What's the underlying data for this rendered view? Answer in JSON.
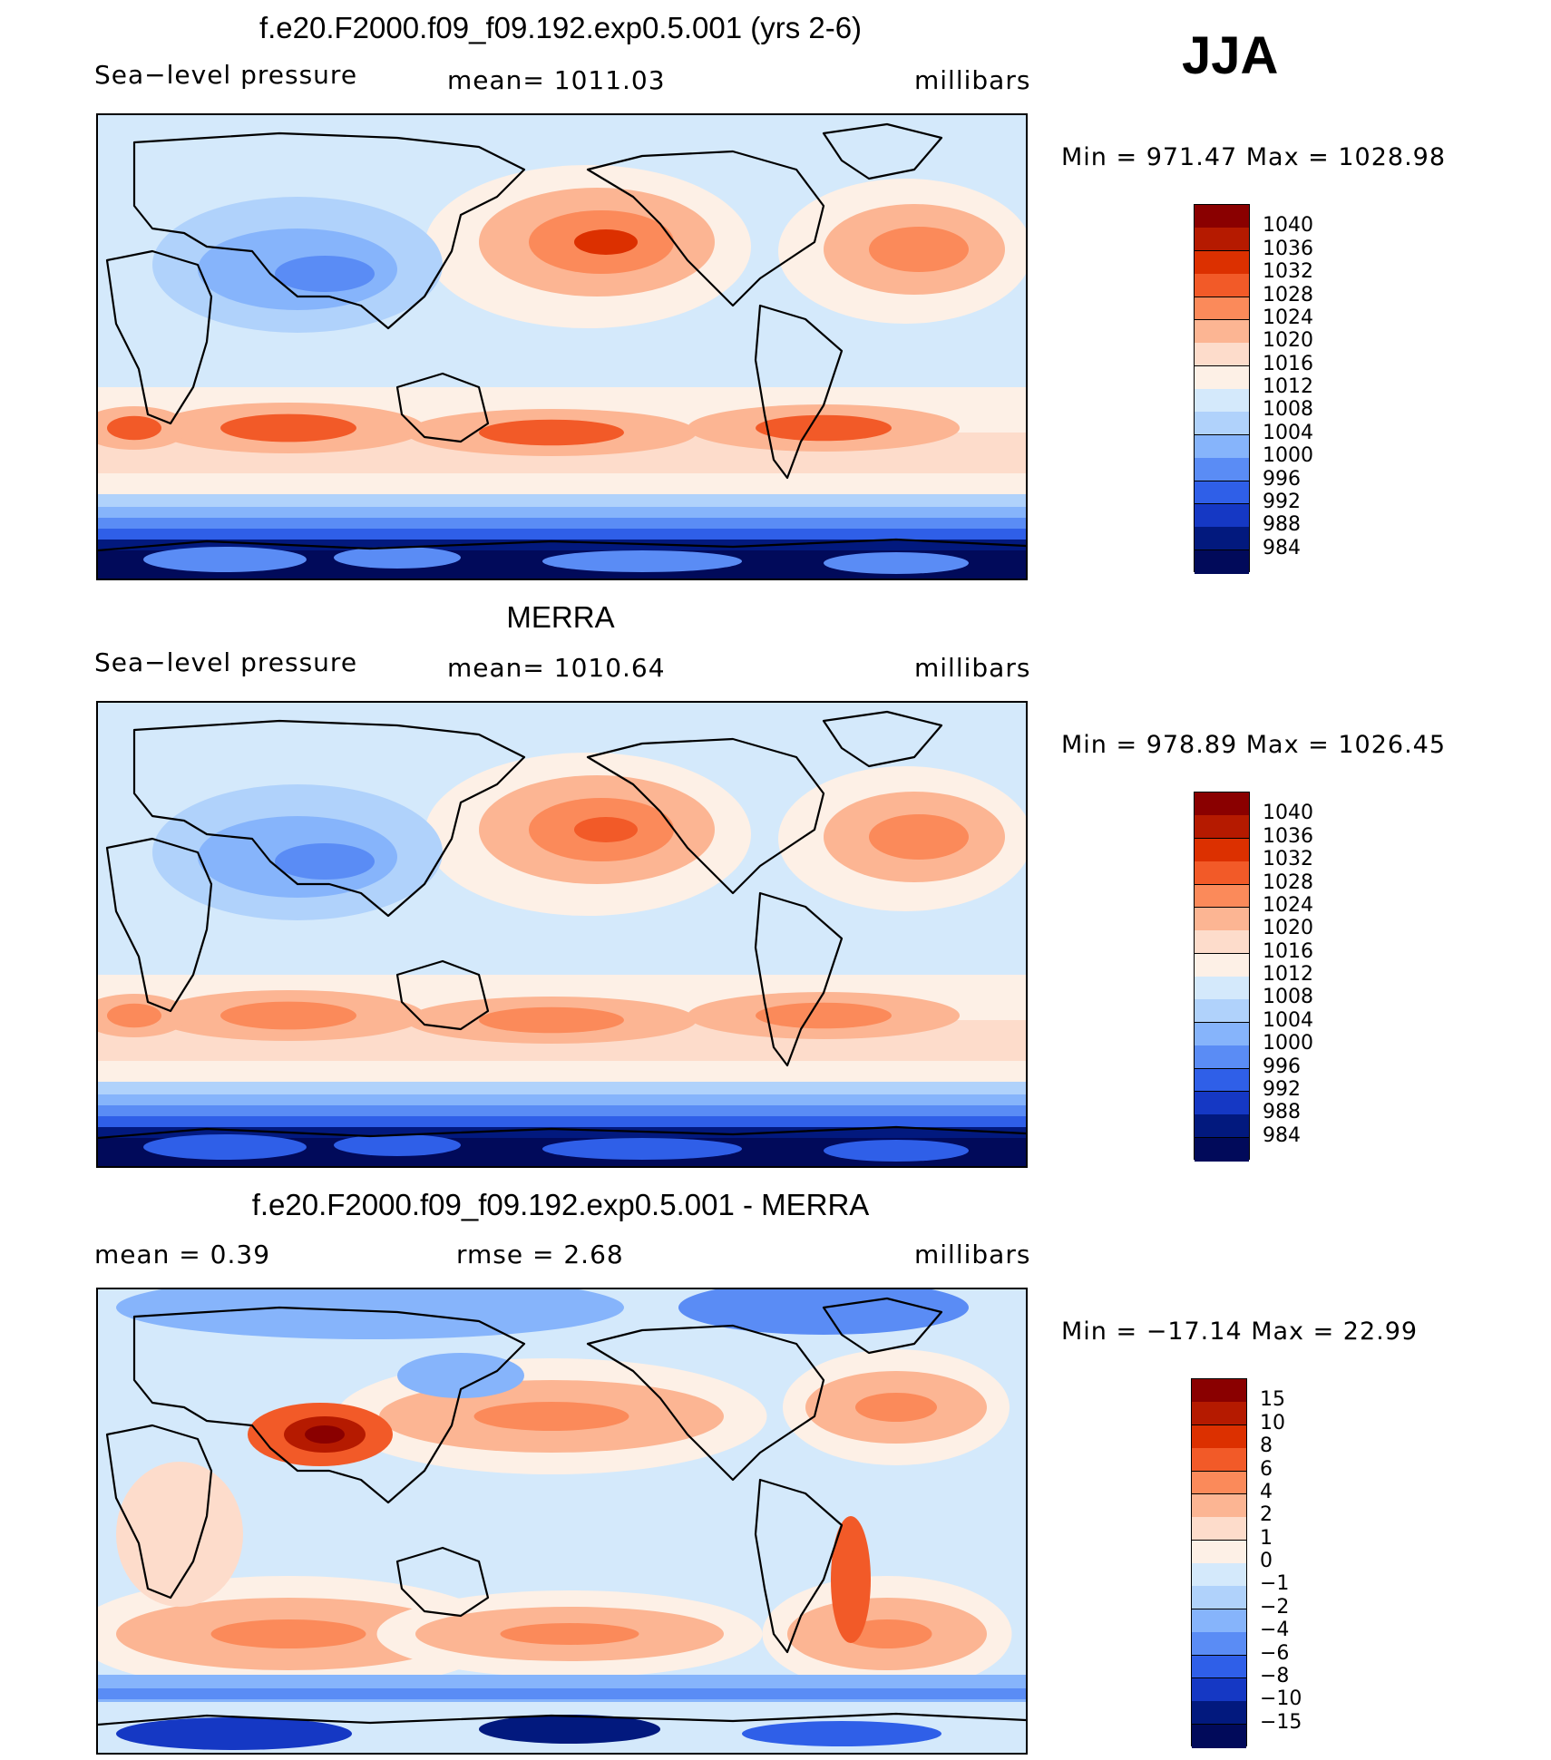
{
  "season": "JJA",
  "panels": [
    {
      "title": "f.e20.F2000.f09_f09.192.exp0.5.001 (yrs 2-6)",
      "variable": "Sea−level pressure",
      "stat_text": "mean=  1011.03",
      "units": "millibars",
      "minmax": "Min  =  971.47  Max  =  1028.98",
      "colorbar_labels": [
        "1040",
        "1036",
        "1032",
        "1028",
        "1024",
        "1020",
        "1016",
        "1012",
        "1008",
        "1004",
        "1000",
        "996",
        "992",
        "988",
        "984"
      ],
      "field": "model"
    },
    {
      "title": "MERRA",
      "variable": "Sea−level pressure",
      "stat_text": "mean=  1010.64",
      "units": "millibars",
      "minmax": "Min  =  978.89  Max  =  1026.45",
      "colorbar_labels": [
        "1040",
        "1036",
        "1032",
        "1028",
        "1024",
        "1020",
        "1016",
        "1012",
        "1008",
        "1004",
        "1000",
        "996",
        "992",
        "988",
        "984"
      ],
      "field": "obs"
    },
    {
      "title": "f.e20.F2000.f09_f09.192.exp0.5.001 - MERRA",
      "stat_mean": "mean  =      0.39",
      "stat_rmse": "rmse  =      2.68",
      "units": "millibars",
      "minmax": "Min  =  −17.14  Max  =     22.99",
      "colorbar_labels": [
        "15",
        "10",
        "8",
        "6",
        "4",
        "2",
        "1",
        "0",
        "−1",
        "−2",
        "−4",
        "−6",
        "−8",
        "−10",
        "−15"
      ],
      "field": "diff"
    }
  ],
  "colorbar_colors": [
    "#8a0000",
    "#b51a00",
    "#dc3000",
    "#f25a28",
    "#fb8a5a",
    "#fcb593",
    "#fddccb",
    "#fdf0e6",
    "#d4e9fb",
    "#b0d2fb",
    "#86b4fb",
    "#5a8cf5",
    "#2f5fe8",
    "#1538c4",
    "#02197e",
    "#010a5a"
  ]
}
